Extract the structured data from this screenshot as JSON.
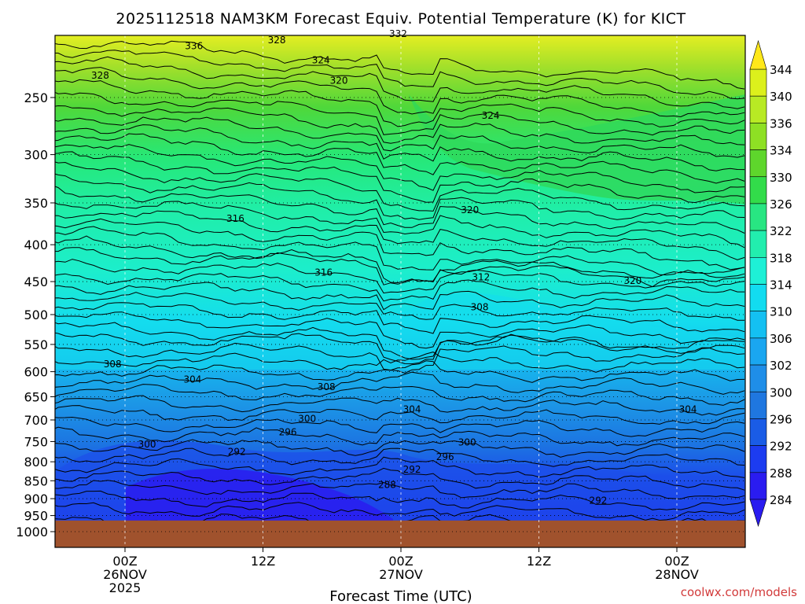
{
  "chart_data": {
    "type": "heatmap",
    "title": "2025112518 NAM3KM Forecast Equiv. Potential Temperature (K) for KICT",
    "xlabel": "Forecast Time (UTC)",
    "ylabel": "",
    "credit": "coolwx.com/models",
    "y_axis": {
      "scale": "log-pressure",
      "inverted": true,
      "ylim": [
        1000,
        200
      ],
      "ticks": [
        250,
        300,
        350,
        400,
        450,
        500,
        550,
        600,
        650,
        700,
        750,
        800,
        850,
        900,
        950,
        1000
      ]
    },
    "x_axis": {
      "range_hours": [
        -4,
        46
      ],
      "ticks": [
        {
          "hour": 0,
          "lines": [
            "00Z",
            "26NOV",
            "2025"
          ]
        },
        {
          "hour": 10,
          "lines": [
            "12Z"
          ]
        },
        {
          "hour": 20,
          "lines": [
            "00Z",
            "27NOV"
          ]
        },
        {
          "hour": 30,
          "lines": [
            "12Z"
          ]
        },
        {
          "hour": 40,
          "lines": [
            "00Z",
            "28NOV"
          ]
        }
      ]
    },
    "grid": true,
    "colorbar": {
      "units": "K",
      "levels": [
        284,
        288,
        292,
        296,
        300,
        302,
        306,
        310,
        314,
        318,
        322,
        326,
        330,
        334,
        336,
        340,
        344
      ],
      "colors": [
        "#2a1cf0",
        "#1c3cf0",
        "#1a5ce6",
        "#1f77e0",
        "#1f8ee8",
        "#1aa6f0",
        "#14c0f2",
        "#12dcf0",
        "#1ef0d6",
        "#22eeae",
        "#28e682",
        "#32dc4a",
        "#5ed62c",
        "#8ee024",
        "#b8ea24",
        "#dcf01c",
        "#ffe81a"
      ],
      "arrows": "both",
      "position": "right"
    },
    "contour_labels": [
      {
        "value": "336",
        "hour": 5.0,
        "p": 212
      },
      {
        "value": "328",
        "hour": 11.0,
        "p": 208
      },
      {
        "value": "332",
        "hour": 19.8,
        "p": 204
      },
      {
        "value": "328",
        "hour": -1.8,
        "p": 233
      },
      {
        "value": "324",
        "hour": 14.2,
        "p": 222
      },
      {
        "value": "320",
        "hour": 15.5,
        "p": 237
      },
      {
        "value": "324",
        "hour": 26.5,
        "p": 265
      },
      {
        "value": "320",
        "hour": 25.0,
        "p": 358
      },
      {
        "value": "316",
        "hour": 8.0,
        "p": 368
      },
      {
        "value": "316",
        "hour": 14.4,
        "p": 437
      },
      {
        "value": "312",
        "hour": 25.8,
        "p": 444
      },
      {
        "value": "320",
        "hour": 36.8,
        "p": 449
      },
      {
        "value": "308",
        "hour": 25.7,
        "p": 488
      },
      {
        "value": "308",
        "hour": -0.9,
        "p": 586
      },
      {
        "value": "304",
        "hour": 4.9,
        "p": 615
      },
      {
        "value": "308",
        "hour": 14.6,
        "p": 630
      },
      {
        "value": "304",
        "hour": 20.8,
        "p": 677
      },
      {
        "value": "304",
        "hour": 40.8,
        "p": 677
      },
      {
        "value": "300",
        "hour": 13.2,
        "p": 697
      },
      {
        "value": "296",
        "hour": 11.8,
        "p": 728
      },
      {
        "value": "300",
        "hour": 1.6,
        "p": 757
      },
      {
        "value": "292",
        "hour": 8.1,
        "p": 775
      },
      {
        "value": "300",
        "hour": 24.8,
        "p": 752
      },
      {
        "value": "296",
        "hour": 23.2,
        "p": 788
      },
      {
        "value": "292",
        "hour": 20.8,
        "p": 820
      },
      {
        "value": "288",
        "hour": 19.0,
        "p": 861
      },
      {
        "value": "292",
        "hour": 34.3,
        "p": 905
      }
    ],
    "ground": {
      "color": "#a0522d",
      "below_p": 965
    }
  }
}
